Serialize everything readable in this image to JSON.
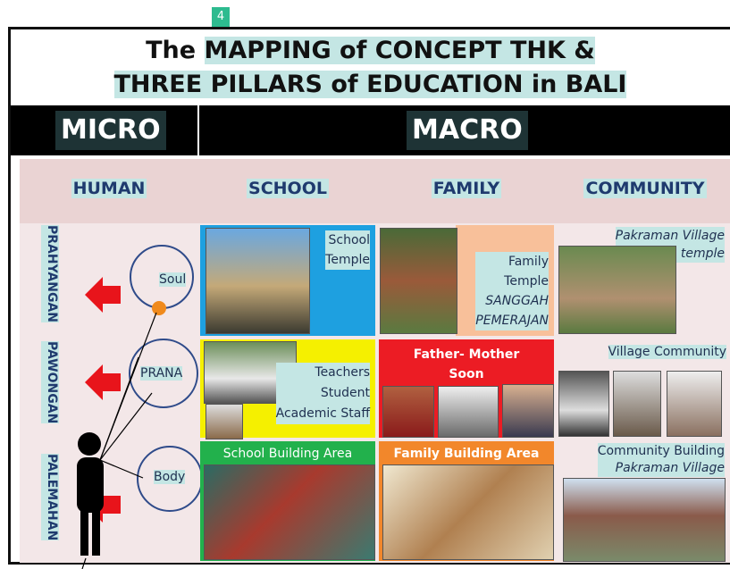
{
  "badge": "4",
  "title": {
    "line1_plain": "The",
    "line1_highlight": "MAPPING of CONCEPT THK &",
    "line2": "THREE PILLARS of EDUCATION in BALI"
  },
  "header": {
    "micro": "MICRO",
    "macro": "MACRO"
  },
  "columns": [
    "HUMAN",
    "SCHOOL",
    "FAMILY",
    "COMMUNITY"
  ],
  "rows": [
    "PRAHYANGAN",
    "PAWONGAN",
    "PALEMAHAN"
  ],
  "human": [
    "Soul",
    "PRANA",
    "Body"
  ],
  "school": {
    "temple": [
      "School",
      "Temple"
    ],
    "people": [
      "Teachers",
      "Student",
      "Academic Staff"
    ],
    "building": "School Building Area"
  },
  "family": {
    "temple": [
      "Family",
      "Temple",
      "SANGGAH",
      "PEMERAJAN"
    ],
    "people": [
      "Father- Mother",
      "Soon"
    ],
    "building": "Family Building Area"
  },
  "community": {
    "temple": [
      "Pakraman Village",
      "temple"
    ],
    "people": "Village Community",
    "building": [
      "Community Building",
      "Pakraman Village"
    ]
  }
}
